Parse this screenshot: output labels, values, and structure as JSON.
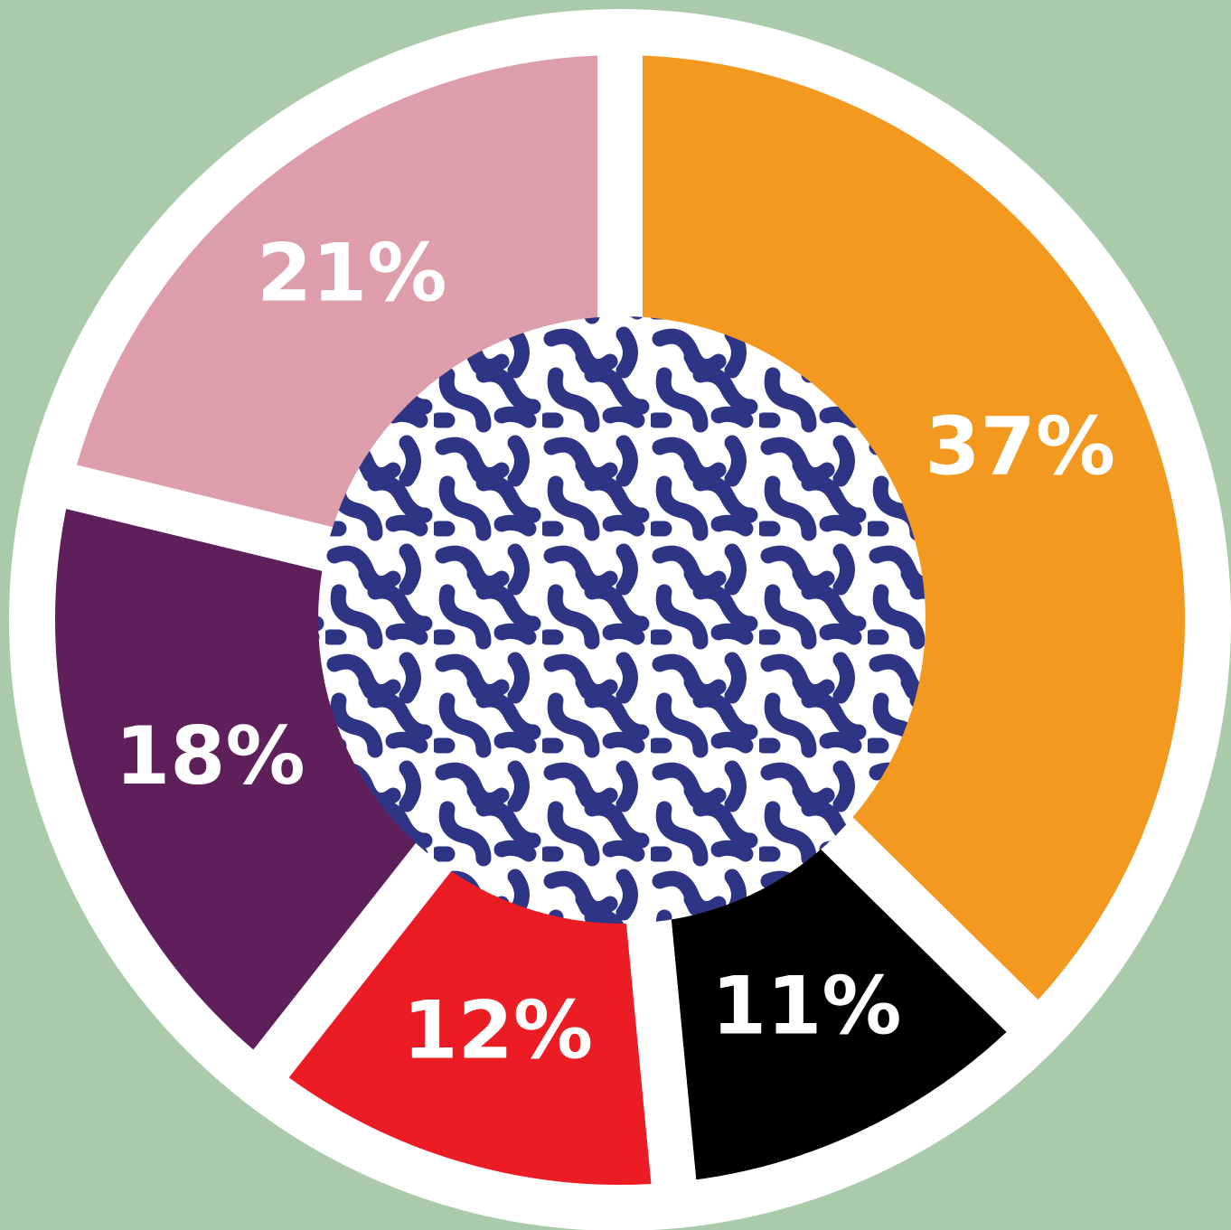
{
  "chart_data": {
    "type": "donut",
    "values": [
      37,
      11,
      12,
      18,
      21
    ],
    "value_labels": [
      "37%",
      "11%",
      "12%",
      "18%",
      "21%"
    ],
    "colors": [
      "#f4991f",
      "#000000",
      "#ec1c24",
      "#5f1f5b",
      "#dd9daa"
    ]
  }
}
